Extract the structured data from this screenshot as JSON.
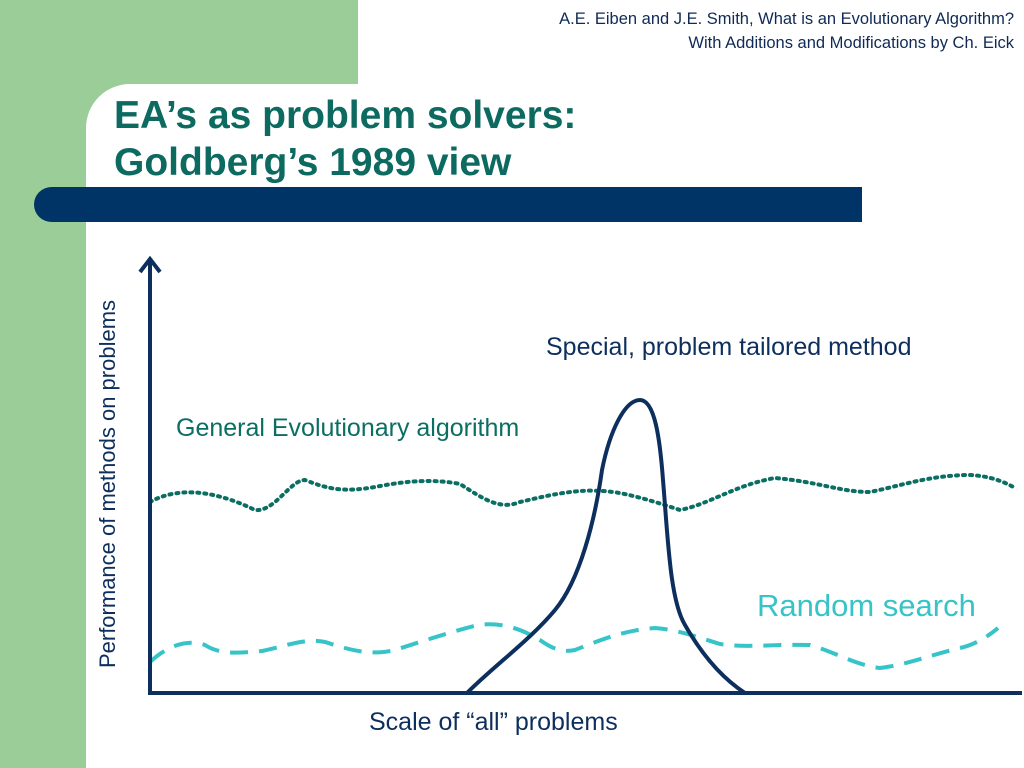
{
  "header": {
    "credit_line1": "A.E. Eiben and J.E. Smith, What is an Evolutionary Algorithm?",
    "credit_line2": "With Additions and Modifications by Ch. Eick"
  },
  "slide": {
    "title_line1": "EA’s as problem solvers:",
    "title_line2": "Goldberg’s 1989 view"
  },
  "diagram": {
    "y_axis_label": "Performance of methods on problems",
    "x_axis_label": "Scale of “all” problems",
    "curves": {
      "special_label": "Special, problem tailored method",
      "ea_label": "General Evolutionary algorithm",
      "random_label": "Random search"
    }
  },
  "colors": {
    "sidebar_green": "#9bcd98",
    "title_teal": "#0c6a60",
    "bar_navy": "#003466",
    "axis_navy": "#0d2f5e",
    "ea_curve": "#0b6e63",
    "random_curve": "#37c4c9"
  }
}
